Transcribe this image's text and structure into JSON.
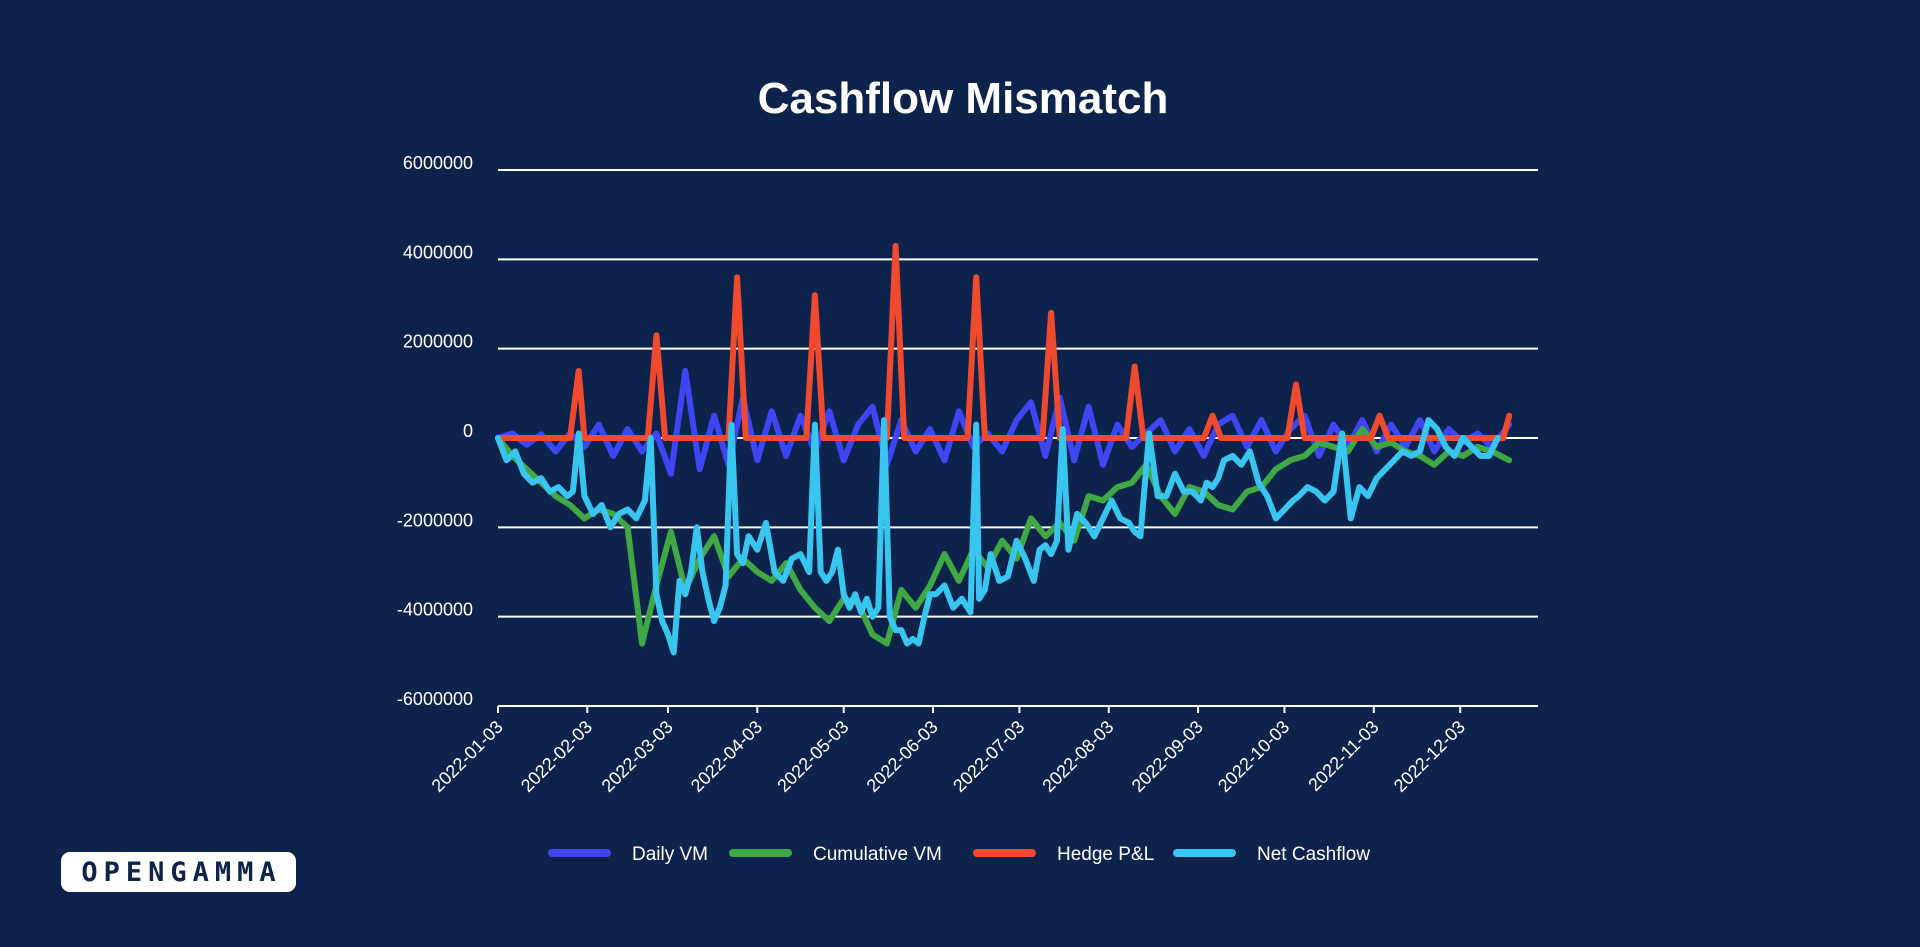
{
  "colors": {
    "background": "#0d234b",
    "grid": "#ffffff",
    "text": "#ffffff"
  },
  "chart_data": {
    "type": "line",
    "title": "Cashflow Mismatch",
    "xlabel": "",
    "ylabel": "",
    "ylim": [
      -6000000,
      6000000
    ],
    "yticks": [
      6000000,
      4000000,
      2000000,
      0,
      -2000000,
      -4000000,
      -6000000
    ],
    "ytick_labels": [
      "6000000",
      "4000000",
      "2000000",
      "0",
      "-2000000",
      "-4000000",
      "-6000000"
    ],
    "xlim": [
      "2022-01-03",
      "2022-12-30"
    ],
    "xtick_labels": [
      "2022-01-03",
      "2022-02-03",
      "2022-03-03",
      "2022-04-03",
      "2022-05-03",
      "2022-06-03",
      "2022-07-03",
      "2022-08-03",
      "2022-09-03",
      "2022-10-03",
      "2022-11-03",
      "2022-12-03"
    ],
    "grid": true,
    "legend": "bottom-center",
    "series": [
      {
        "name": "Daily VM",
        "color": "#3f45f2",
        "day_offset": [
          0,
          5,
          10,
          15,
          20,
          25,
          30,
          35,
          40,
          45,
          50,
          55,
          60,
          65,
          70,
          75,
          80,
          85,
          90,
          95,
          100,
          105,
          110,
          115,
          120,
          125,
          130,
          135,
          140,
          145,
          150,
          155,
          160,
          165,
          170,
          175,
          180,
          185,
          190,
          195,
          200,
          205,
          210,
          215,
          220,
          225,
          230,
          235,
          240,
          245,
          250,
          255,
          260,
          265,
          270,
          275,
          280,
          285,
          290,
          295,
          300,
          305,
          310,
          315,
          320,
          325,
          330,
          335,
          340,
          345,
          351
        ],
        "values": [
          0,
          100000,
          -150000,
          80000,
          -300000,
          100000,
          -200000,
          300000,
          -400000,
          200000,
          -300000,
          100000,
          -800000,
          1500000,
          -700000,
          500000,
          -600000,
          900000,
          -500000,
          600000,
          -400000,
          500000,
          -300000,
          600000,
          -500000,
          300000,
          700000,
          -600000,
          400000,
          -300000,
          200000,
          -500000,
          600000,
          -200000,
          100000,
          -300000,
          400000,
          800000,
          -400000,
          900000,
          -500000,
          700000,
          -600000,
          300000,
          -200000,
          100000,
          400000,
          -300000,
          200000,
          -400000,
          300000,
          500000,
          -200000,
          400000,
          -300000,
          200000,
          500000,
          -400000,
          300000,
          -200000,
          400000,
          -300000,
          300000,
          -200000,
          400000,
          -300000,
          200000,
          -100000,
          100000,
          -200000,
          300000
        ]
      },
      {
        "name": "Cumulative VM",
        "color": "#3fa845",
        "day_offset": [
          0,
          5,
          10,
          15,
          20,
          25,
          30,
          35,
          40,
          45,
          50,
          55,
          60,
          65,
          70,
          75,
          80,
          85,
          90,
          95,
          100,
          105,
          110,
          115,
          120,
          125,
          130,
          135,
          140,
          145,
          150,
          155,
          160,
          165,
          170,
          175,
          180,
          185,
          190,
          195,
          200,
          205,
          210,
          215,
          220,
          225,
          230,
          235,
          240,
          245,
          250,
          255,
          260,
          265,
          270,
          275,
          280,
          285,
          290,
          295,
          300,
          305,
          310,
          315,
          320,
          325,
          330,
          335,
          340,
          345,
          351
        ],
        "values": [
          0,
          -400000,
          -700000,
          -1000000,
          -1300000,
          -1500000,
          -1800000,
          -1600000,
          -1700000,
          -2000000,
          -4600000,
          -3300000,
          -2100000,
          -3400000,
          -2700000,
          -2200000,
          -3100000,
          -2700000,
          -3000000,
          -3200000,
          -2800000,
          -3400000,
          -3800000,
          -4100000,
          -3600000,
          -3700000,
          -4400000,
          -4600000,
          -3400000,
          -3800000,
          -3300000,
          -2600000,
          -3200000,
          -2500000,
          -2900000,
          -2300000,
          -2700000,
          -1800000,
          -2200000,
          -1900000,
          -2300000,
          -1300000,
          -1400000,
          -1100000,
          -1000000,
          -600000,
          -1300000,
          -1700000,
          -1100000,
          -1200000,
          -1500000,
          -1600000,
          -1200000,
          -1100000,
          -700000,
          -500000,
          -400000,
          -100000,
          -200000,
          -300000,
          200000,
          -200000,
          -100000,
          -300000,
          -400000,
          -600000,
          -300000,
          -400000,
          -200000,
          -300000,
          -500000
        ]
      },
      {
        "name": "Hedge P&L",
        "color": "#f04a2e",
        "day_offset": [
          0,
          25,
          28,
          30,
          52,
          55,
          58,
          80,
          83,
          86,
          107,
          110,
          113,
          135,
          138,
          141,
          163,
          166,
          169,
          189,
          192,
          195,
          218,
          221,
          224,
          245,
          248,
          251,
          274,
          277,
          280,
          303,
          306,
          309,
          330,
          333,
          336,
          349,
          351
        ],
        "values": [
          0,
          0,
          1500000,
          0,
          0,
          2300000,
          0,
          0,
          3600000,
          0,
          0,
          3200000,
          0,
          0,
          4300000,
          0,
          0,
          3600000,
          0,
          0,
          2800000,
          0,
          0,
          1600000,
          0,
          0,
          500000,
          0,
          0,
          1200000,
          0,
          0,
          500000,
          0,
          0,
          0,
          0,
          0,
          500000
        ]
      },
      {
        "name": "Net Cashflow",
        "color": "#38c5ef",
        "day_offset": [
          0,
          3,
          6,
          9,
          12,
          15,
          18,
          21,
          24,
          26,
          28,
          30,
          33,
          36,
          39,
          42,
          45,
          48,
          51,
          53,
          55,
          57,
          59,
          61,
          63,
          65,
          67,
          69,
          71,
          73,
          75,
          77,
          79,
          81,
          83,
          85,
          87,
          90,
          93,
          96,
          99,
          102,
          105,
          108,
          110,
          112,
          114,
          116,
          118,
          120,
          122,
          124,
          126,
          128,
          130,
          132,
          134,
          136,
          138,
          140,
          142,
          144,
          146,
          148,
          150,
          152,
          155,
          158,
          161,
          164,
          166,
          167,
          169,
          171,
          174,
          177,
          180,
          183,
          186,
          188,
          190,
          192,
          194,
          196,
          198,
          201,
          204,
          207,
          210,
          213,
          216,
          219,
          221,
          223,
          226,
          229,
          232,
          235,
          238,
          241,
          244,
          246,
          248,
          250,
          252,
          255,
          258,
          261,
          264,
          267,
          270,
          273,
          276,
          278,
          281,
          284,
          287,
          290,
          293,
          296,
          299,
          302,
          305,
          308,
          311,
          314,
          317,
          320,
          323,
          326,
          329,
          332,
          335,
          338,
          341,
          344,
          347,
          351
        ],
        "values": [
          0,
          -500000,
          -300000,
          -800000,
          -1000000,
          -900000,
          -1200000,
          -1100000,
          -1300000,
          -1200000,
          100000,
          -1300000,
          -1700000,
          -1500000,
          -2000000,
          -1700000,
          -1600000,
          -1800000,
          -1400000,
          0,
          -3500000,
          -4100000,
          -4400000,
          -4800000,
          -3200000,
          -3500000,
          -3000000,
          -2000000,
          -3000000,
          -3600000,
          -4100000,
          -3800000,
          -3300000,
          300000,
          -2600000,
          -2800000,
          -2200000,
          -2500000,
          -1900000,
          -3000000,
          -3200000,
          -2700000,
          -2600000,
          -3000000,
          300000,
          -3000000,
          -3200000,
          -3000000,
          -2500000,
          -3500000,
          -3800000,
          -3500000,
          -3900000,
          -3600000,
          -4000000,
          -3800000,
          400000,
          -4000000,
          -4300000,
          -4300000,
          -4600000,
          -4500000,
          -4600000,
          -4000000,
          -3500000,
          -3500000,
          -3300000,
          -3800000,
          -3600000,
          -3900000,
          300000,
          -3600000,
          -3400000,
          -2600000,
          -3200000,
          -3100000,
          -2300000,
          -2700000,
          -3200000,
          -2500000,
          -2400000,
          -2600000,
          -2300000,
          200000,
          -2500000,
          -1700000,
          -1900000,
          -2200000,
          -1800000,
          -1400000,
          -1800000,
          -1900000,
          -2100000,
          -2200000,
          100000,
          -1300000,
          -1300000,
          -800000,
          -1200000,
          -1200000,
          -1400000,
          -1000000,
          -1100000,
          -900000,
          -500000,
          -400000,
          -600000,
          -300000,
          -1000000,
          -1300000,
          -1800000,
          -1600000,
          -1400000,
          -1300000,
          -1100000,
          -1200000,
          -1400000,
          -1200000,
          100000,
          -1800000,
          -1100000,
          -1300000,
          -900000,
          -700000,
          -500000,
          -300000,
          -400000,
          -300000,
          400000,
          200000,
          -200000,
          -400000,
          0,
          -200000,
          -400000,
          -400000,
          0
        ]
      }
    ]
  },
  "logo": {
    "text": "OPENGAMMA"
  }
}
